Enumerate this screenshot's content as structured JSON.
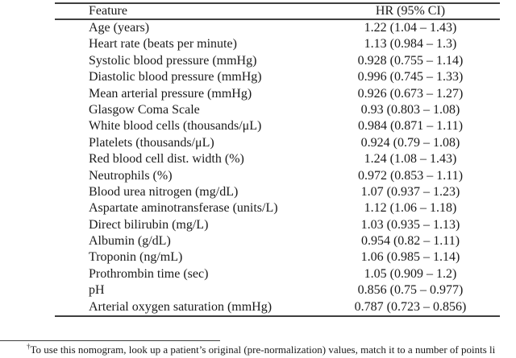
{
  "colors": {
    "background": "#ffffff",
    "text": "#1a1a1a",
    "rule": "#3f3f3f"
  },
  "table": {
    "columns": [
      {
        "key": "feature",
        "label": "Feature"
      },
      {
        "key": "hr",
        "label": "HR (95% CI)"
      }
    ],
    "rows": [
      {
        "feature": "Age (years)",
        "hr": "1.22 (1.04 – 1.43)"
      },
      {
        "feature": "Heart rate (beats per minute)",
        "hr": "1.13 (0.984 – 1.3)"
      },
      {
        "feature": "Systolic blood pressure (mmHg)",
        "hr": "0.928 (0.755 – 1.14)"
      },
      {
        "feature": "Diastolic blood pressure (mmHg)",
        "hr": "0.996 (0.745 – 1.33)"
      },
      {
        "feature": "Mean arterial pressure (mmHg)",
        "hr": "0.926 (0.673 – 1.27)"
      },
      {
        "feature": "Glasgow Coma Scale",
        "hr": "0.93 (0.803 – 1.08)"
      },
      {
        "feature": "White blood cells (thousands/μL)",
        "hr": "0.984 (0.871 – 1.11)"
      },
      {
        "feature": "Platelets (thousands/μL)",
        "hr": "0.924 (0.79 – 1.08)"
      },
      {
        "feature": "Red blood cell dist. width (%)",
        "hr": "1.24 (1.08 – 1.43)"
      },
      {
        "feature": "Neutrophils (%)",
        "hr": "0.972 (0.853 – 1.11)"
      },
      {
        "feature": "Blood urea nitrogen (mg/dL)",
        "hr": "1.07 (0.937 – 1.23)"
      },
      {
        "feature": "Aspartate aminotransferase (units/L)",
        "hr": "1.12 (1.06 – 1.18)"
      },
      {
        "feature": "Direct bilirubin (mg/L)",
        "hr": "1.03 (0.935 – 1.13)"
      },
      {
        "feature": "Albumin (g/dL)",
        "hr": "0.954 (0.82 – 1.11)"
      },
      {
        "feature": "Troponin (ng/mL)",
        "hr": "1.06 (0.985 – 1.14)"
      },
      {
        "feature": "Prothrombin time (sec)",
        "hr": "1.05 (0.909 – 1.2)"
      },
      {
        "feature": "pH",
        "hr": "0.856 (0.75 – 0.977)"
      },
      {
        "feature": "Arterial oxygen saturation (mmHg)",
        "hr": "0.787 (0.723 – 0.856)"
      }
    ]
  },
  "footnote": {
    "marker": "†",
    "text": "To use this nomogram, look up a patient’s original (pre-normalization) values, match it to a number of points li"
  }
}
